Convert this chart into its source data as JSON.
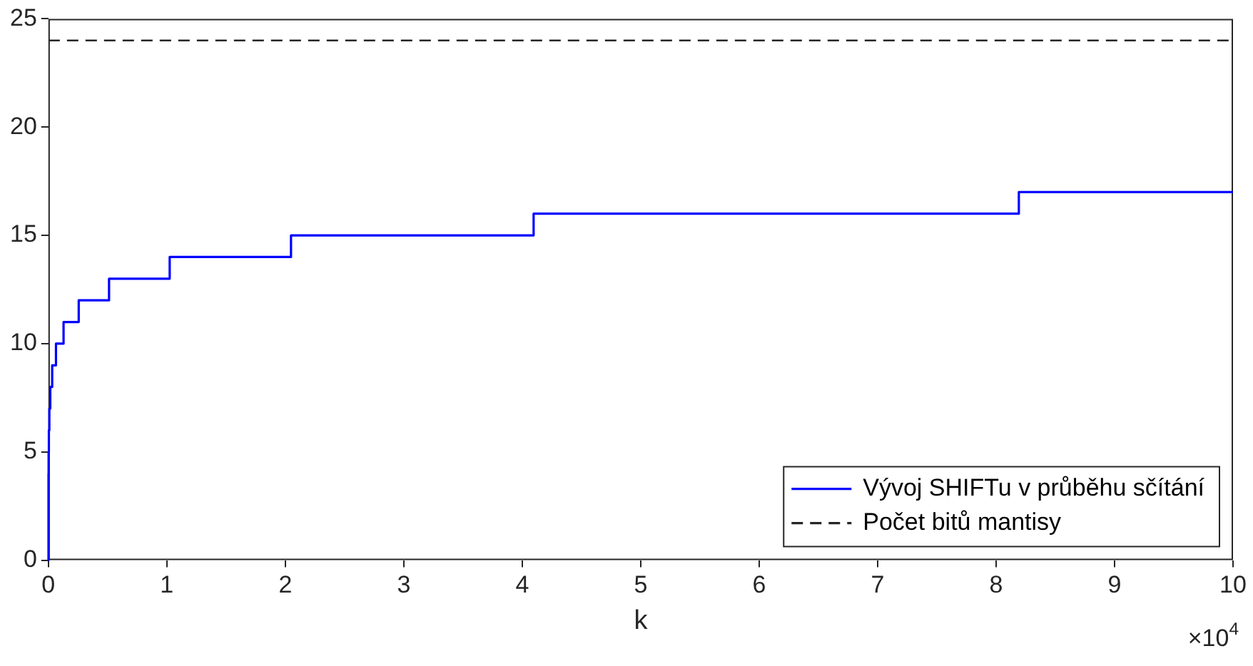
{
  "chart_data": {
    "type": "step",
    "xlabel": "k",
    "x": [
      0,
      0.001,
      0.002,
      0.004,
      0.008,
      0.016,
      0.032,
      0.064,
      0.128,
      0.256,
      0.512,
      1.024,
      2.048,
      4.096,
      8.192,
      10
    ],
    "series": [
      {
        "name": "Vývoj SHIFTu v průběhu sčítání",
        "color": "#0000ff",
        "values": [
          0,
          4,
          5,
          6,
          7,
          8,
          9,
          10,
          11,
          12,
          13,
          14,
          15,
          16,
          17,
          17
        ]
      }
    ],
    "ref_lines": [
      {
        "axis": "y",
        "value": 24,
        "label": "Počet bitů mantisy",
        "color": "#262626",
        "line_style": "dashed"
      }
    ],
    "xlim": [
      0,
      10
    ],
    "xticks": [
      0,
      1,
      2,
      3,
      4,
      5,
      6,
      7,
      8,
      9,
      10
    ],
    "ylim": [
      0,
      25
    ],
    "yticks": [
      0,
      5,
      10,
      15,
      20,
      25
    ],
    "annotations": [
      "×10$^{4}$"
    ],
    "legend": "bottom right",
    "grid": false
  }
}
